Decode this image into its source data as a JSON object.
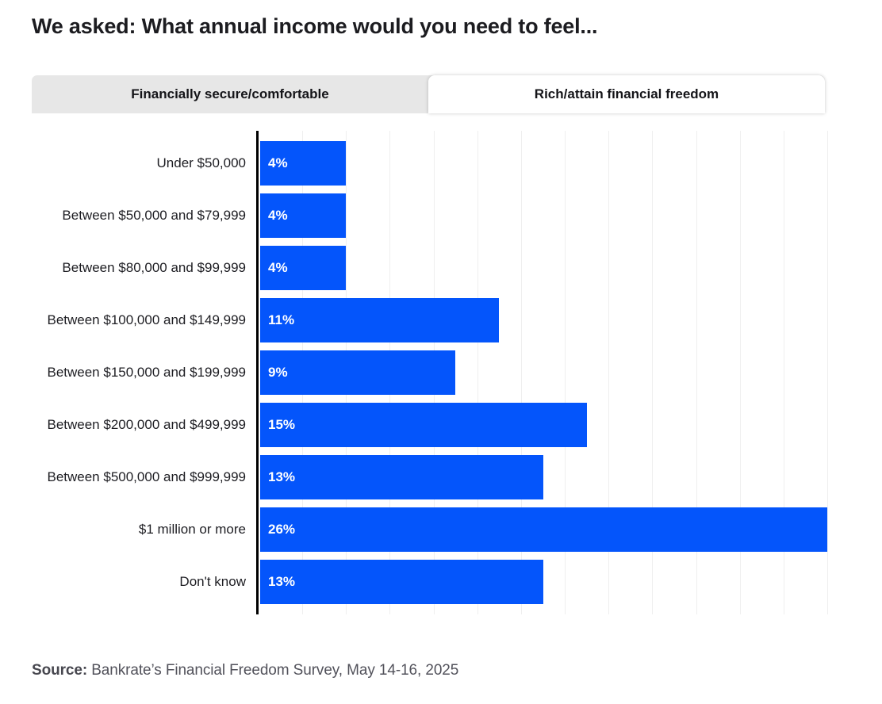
{
  "title": "We asked: What annual income would you need to feel...",
  "tabs": {
    "secure": {
      "label": "Financially secure/comfortable",
      "active": false
    },
    "rich": {
      "label": "Rich/attain financial freedom",
      "active": true
    }
  },
  "chart_data": {
    "type": "bar",
    "orientation": "horizontal",
    "title": "",
    "xlabel": "",
    "ylabel": "",
    "categories": [
      "Under $50,000",
      "Between $50,000 and $79,999",
      "Between $80,000 and $99,999",
      "Between $100,000 and $149,999",
      "Between $150,000 and $199,999",
      "Between $200,000 and $499,999",
      "Between $500,000 and $999,999",
      "$1 million or more",
      "Don't know"
    ],
    "values": [
      4,
      4,
      4,
      11,
      9,
      15,
      13,
      26,
      13
    ],
    "value_labels": [
      "4%",
      "4%",
      "4%",
      "11%",
      "9%",
      "15%",
      "13%",
      "26%",
      "13%"
    ],
    "xlim": [
      0,
      26
    ],
    "gridline_step": 2,
    "grid": true,
    "legend_position": "none"
  },
  "source": {
    "label": "Source:",
    "text": "Bankrate’s Financial Freedom Survey, May 14-16, 2025"
  },
  "colors": {
    "bar": "#0455fb",
    "axis": "#000000",
    "grid": "#efefef",
    "tab_inactive_bg": "#e7e7e7",
    "tab_active_bg": "#ffffff",
    "title_text": "#1c1c20",
    "source_text": "#52525b"
  }
}
